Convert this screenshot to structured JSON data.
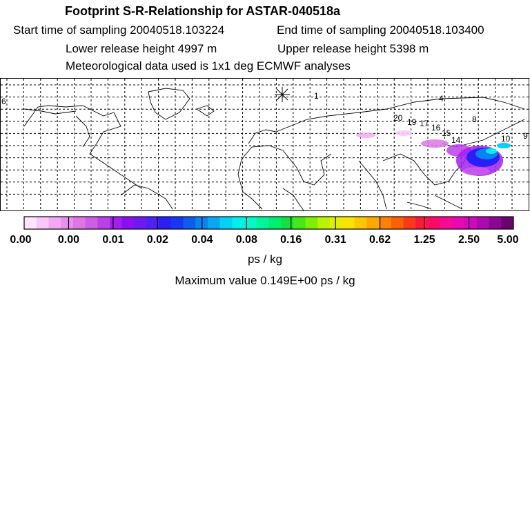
{
  "header": {
    "title": "Footprint S-R-Relationship for ASTAR-040518a",
    "start_time": "Start time of sampling 20040518.103224",
    "end_time": "End time of sampling 20040518.103400",
    "lower_height": "Lower release height 4997 m",
    "upper_height": "Upper release height 5398 m",
    "met_data": "Meteorological data used is 1x1 deg ECMWF analyses"
  },
  "map": {
    "trajectory_labels": [
      "1",
      "4",
      "6",
      "8",
      "9",
      "10",
      "14",
      "15",
      "16",
      "17",
      "19",
      "20"
    ]
  },
  "legend": {
    "ticks": [
      "0.00",
      "0.00",
      "0.01",
      "0.02",
      "0.04",
      "0.08",
      "0.16",
      "0.31",
      "0.62",
      "1.25",
      "2.50",
      "5.00"
    ],
    "colors": [
      "#fde6fd",
      "#f9c8f9",
      "#f2a8f2",
      "#e98fec",
      "#dd77e6",
      "#cd5ee6",
      "#bb40ea",
      "#a21ef0",
      "#8a10f4",
      "#6e18f6",
      "#4f20f8",
      "#2a1ef6",
      "#1638f2",
      "#0e5cf0",
      "#0a82ef",
      "#06a8f0",
      "#00d2f4",
      "#00f0ec",
      "#00f8c8",
      "#00f49a",
      "#00ee70",
      "#14e040",
      "#44ea18",
      "#80f000",
      "#b8f400",
      "#e0f000",
      "#f8e400",
      "#fcc800",
      "#fca800",
      "#fc8400",
      "#fc6000",
      "#fc3a1a",
      "#fc1a3c",
      "#fc0a6a",
      "#f80a94",
      "#e80ab0",
      "#d00aba",
      "#b008b0",
      "#8c0696",
      "#6a0470"
    ],
    "units": "ps / kg",
    "max_value": "Maximum value  0.149E+00 ps / kg"
  }
}
